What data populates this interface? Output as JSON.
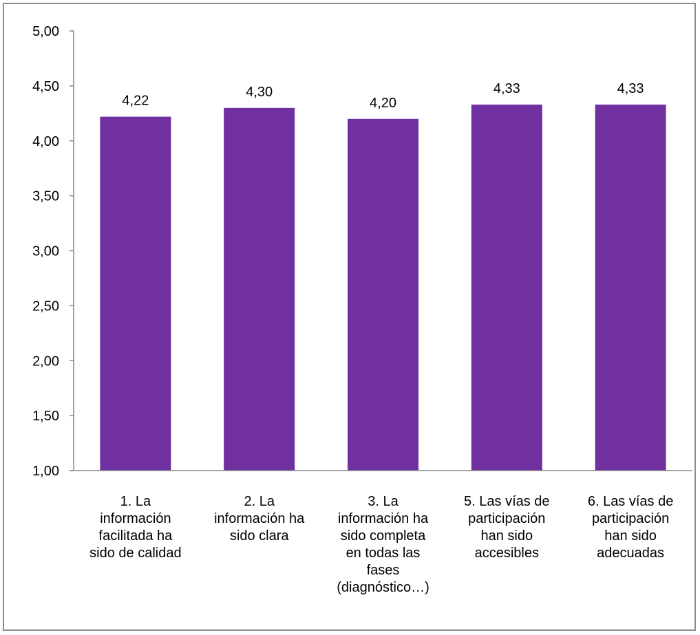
{
  "chart_data": {
    "type": "bar",
    "categories": [
      [
        "1. La",
        "información",
        "facilitada ha",
        "sido de calidad"
      ],
      [
        "2. La",
        "información ha",
        "sido clara"
      ],
      [
        "3. La",
        "información ha",
        "sido completa",
        "en todas las",
        "fases",
        "(diagnóstico…)"
      ],
      [
        "5. Las vías de",
        "participación",
        "han sido",
        "accesibles"
      ],
      [
        "6. Las vías de",
        "participación",
        "han sido",
        "adecuadas"
      ]
    ],
    "values": [
      4.22,
      4.3,
      4.2,
      4.33,
      4.33
    ],
    "value_labels": [
      "4,22",
      "4,30",
      "4,20",
      "4,33",
      "4,33"
    ],
    "ylim": [
      1.0,
      5.0
    ],
    "yticks": [
      1.0,
      1.5,
      2.0,
      2.5,
      3.0,
      3.5,
      4.0,
      4.5,
      5.0
    ],
    "ytick_labels": [
      "1,00",
      "1,50",
      "2,00",
      "2,50",
      "3,00",
      "3,50",
      "4,00",
      "4,50",
      "5,00"
    ],
    "title": "",
    "xlabel": "",
    "ylabel": "",
    "grid": false,
    "legend": "none",
    "bar_color": "#7030A0",
    "axis_color": "#868686"
  }
}
